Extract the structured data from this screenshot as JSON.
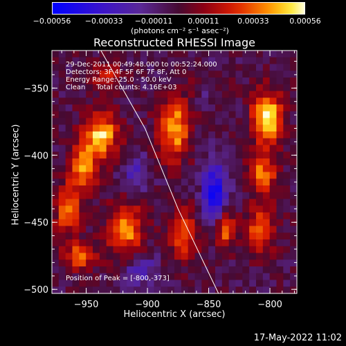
{
  "chart_data": {
    "type": "heatmap",
    "title": "Reconstructed RHESSI Image",
    "xlabel": "Heliocentric X (arcsec)",
    "ylabel": "Heliocentric Y (arcsec)",
    "xlim": [
      -978,
      -778
    ],
    "ylim": [
      -503,
      -322
    ],
    "x_ticks": [
      -950,
      -900,
      -850,
      -800
    ],
    "x_tick_labels": [
      "−950",
      "−900",
      "−850",
      "−800"
    ],
    "y_ticks": [
      -350,
      -400,
      -450,
      -500
    ],
    "y_tick_labels": [
      "−350",
      "−400",
      "−450",
      "−500"
    ],
    "colorbar": {
      "range": [
        -0.00056,
        0.00056
      ],
      "tick_values": [
        -0.00056,
        -0.00033,
        -0.00011,
        0.00011,
        0.00033,
        0.00056
      ],
      "tick_labels": [
        "−0.00056",
        "−0.00033",
        "−0.00011",
        "0.00011",
        "0.00033",
        "0.00056"
      ],
      "unit_label": "(photons cm⁻² s⁻¹ asec⁻²)"
    },
    "annotations": {
      "time": "29-Dec-2011 00:49:48.000 to 00:52:24.000",
      "detectors": "Detectors: 3F 4F 5F 6F 7F 8F, Att 0",
      "energy": "Energy Range: 25.0 - 50.0 keV",
      "clean": "Clean     Total counts: 4.16E+03",
      "peak": "Position of Peak = [-800,-373]"
    },
    "limb_curve": [
      [
        -938,
        -322
      ],
      [
        -902,
        -380
      ],
      [
        -875,
        -440
      ],
      [
        -842,
        -503
      ]
    ],
    "sources": [
      {
        "x": -802,
        "y": -373,
        "amp": 1.0,
        "sx": 9,
        "sy": 14
      },
      {
        "x": -806,
        "y": -415,
        "amp": 0.7,
        "sx": 8,
        "sy": 10
      },
      {
        "x": -808,
        "y": -455,
        "amp": 0.6,
        "sx": 9,
        "sy": 12
      },
      {
        "x": -838,
        "y": -455,
        "amp": 0.75,
        "sx": 6,
        "sy": 10
      },
      {
        "x": -878,
        "y": -380,
        "amp": 0.85,
        "sx": 9,
        "sy": 16
      },
      {
        "x": -870,
        "y": -460,
        "amp": 0.55,
        "sx": 9,
        "sy": 14
      },
      {
        "x": -938,
        "y": -385,
        "amp": 0.9,
        "sx": 10,
        "sy": 12
      },
      {
        "x": -952,
        "y": -410,
        "amp": 0.7,
        "sx": 8,
        "sy": 12
      },
      {
        "x": -965,
        "y": -440,
        "amp": 0.75,
        "sx": 7,
        "sy": 12
      },
      {
        "x": -918,
        "y": -455,
        "amp": 0.8,
        "sx": 10,
        "sy": 14
      },
      {
        "x": -955,
        "y": -475,
        "amp": 0.6,
        "sx": 10,
        "sy": 8
      },
      {
        "x": -935,
        "y": -340,
        "amp": 0.5,
        "sx": 8,
        "sy": 6
      },
      {
        "x": -852,
        "y": -345,
        "amp": 0.35,
        "sx": 10,
        "sy": 6
      },
      {
        "x": -845,
        "y": -430,
        "amp": -0.8,
        "sx": 7,
        "sy": 18
      },
      {
        "x": -852,
        "y": -345,
        "amp": -0.4,
        "sx": 6,
        "sy": 8
      },
      {
        "x": -910,
        "y": -415,
        "amp": -0.4,
        "sx": 8,
        "sy": 10
      },
      {
        "x": -905,
        "y": -485,
        "amp": -0.4,
        "sx": 10,
        "sy": 8
      }
    ]
  },
  "footer": {
    "timestamp": "17-May-2022 11:02"
  }
}
